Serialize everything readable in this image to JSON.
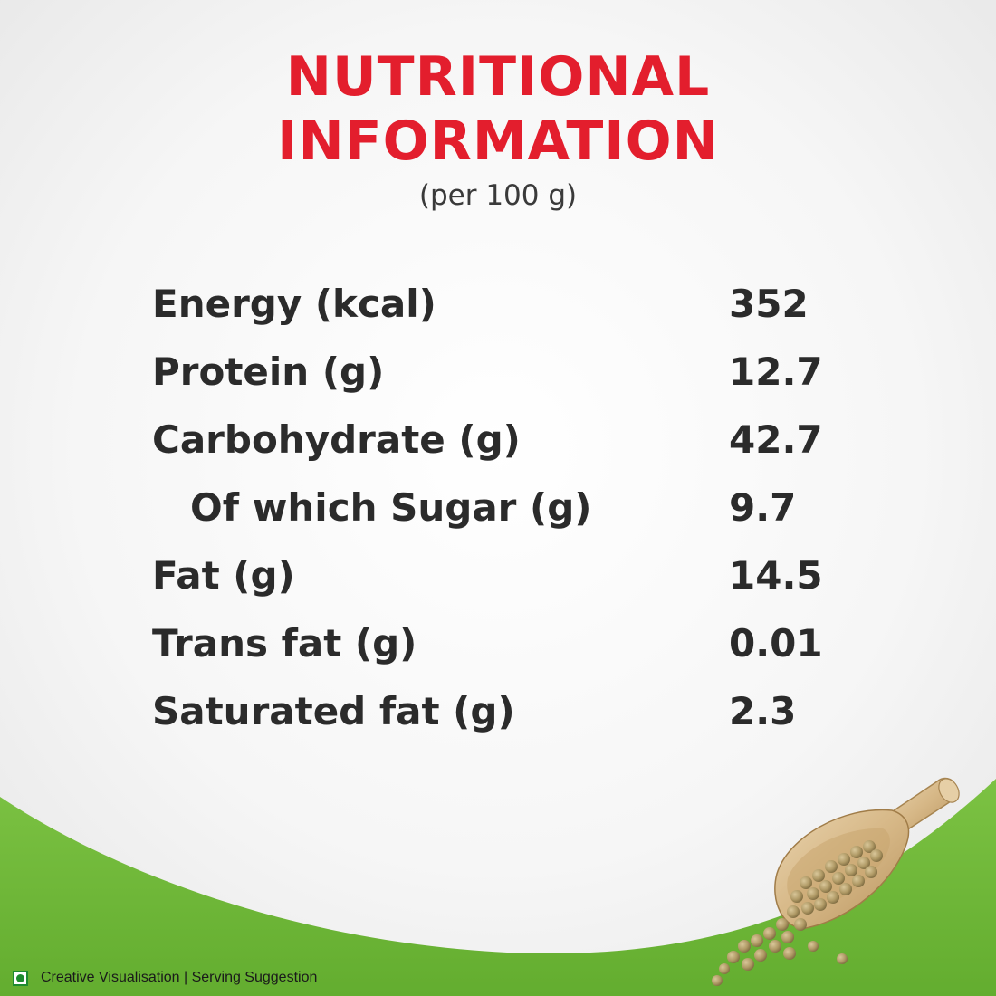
{
  "header": {
    "title_line1": "NUTRITIONAL",
    "title_line2": "INFORMATION",
    "subtitle": "(per 100 g)"
  },
  "nutrition": {
    "rows": [
      {
        "label": "Energy (kcal)",
        "value": "352"
      },
      {
        "label": "Protein (g)",
        "value": "12.7"
      },
      {
        "label": "Carbohydrate (g)",
        "value": "42.7"
      },
      {
        "label": "Of which Sugar (g)",
        "value": "9.7"
      },
      {
        "label": "Fat (g)",
        "value": "14.5"
      },
      {
        "label": "Trans fat (g)",
        "value": "0.01"
      },
      {
        "label": "Saturated fat (g)",
        "value": "2.3"
      }
    ]
  },
  "footer": {
    "disclaimer": "Creative Visualisation | Serving Suggestion",
    "veg_mark_icon": "veg-symbol-icon"
  },
  "colors": {
    "title": "#e31e2d",
    "text": "#2b2b2b",
    "green_wave": "#74bd3a",
    "veg_mark": "#1e8a2f"
  }
}
